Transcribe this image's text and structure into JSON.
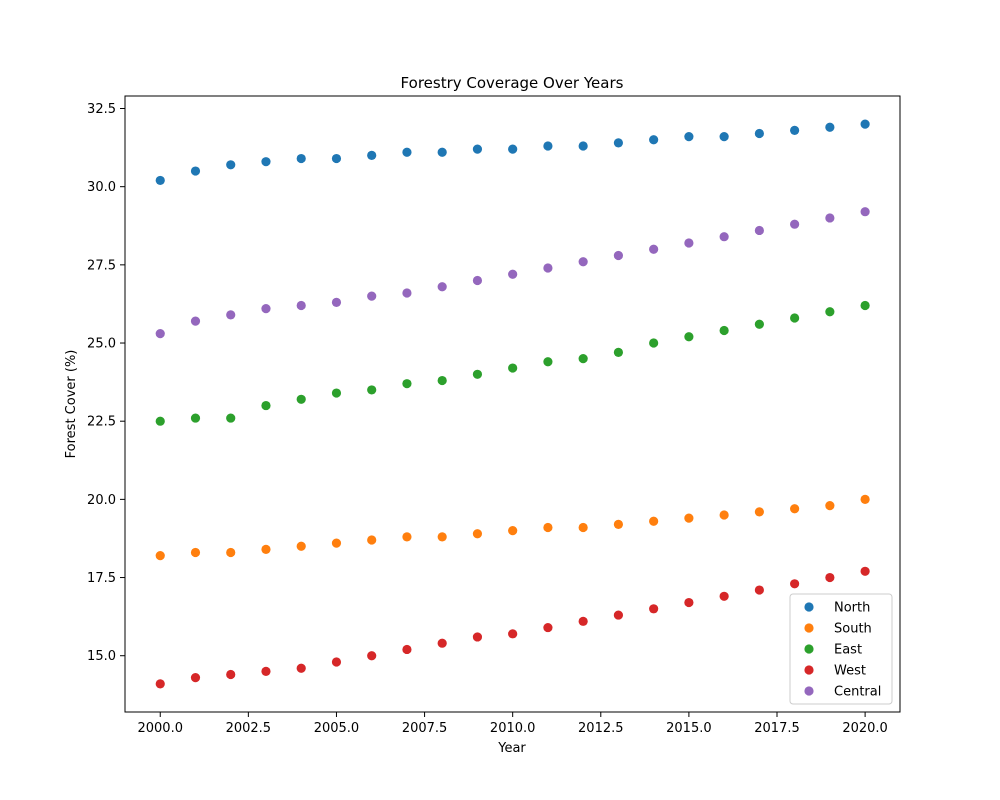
{
  "chart_data": {
    "type": "scatter",
    "title": "Forestry Coverage Over Years",
    "xlabel": "Year",
    "ylabel": "Forest Cover (%)",
    "x": [
      2000,
      2001,
      2002,
      2003,
      2004,
      2005,
      2006,
      2007,
      2008,
      2009,
      2010,
      2011,
      2012,
      2013,
      2014,
      2015,
      2016,
      2017,
      2018,
      2019,
      2020
    ],
    "xlim": [
      1999.0,
      2020.99
    ],
    "ylim": [
      13.2,
      32.9
    ],
    "xticks": [
      2000.0,
      2002.5,
      2005.0,
      2007.5,
      2010.0,
      2012.5,
      2015.0,
      2017.5,
      2020.0
    ],
    "xtick_labels": [
      "2000.0",
      "2002.5",
      "2005.0",
      "2007.5",
      "2010.0",
      "2012.5",
      "2015.0",
      "2017.5",
      "2020.0"
    ],
    "yticks": [
      15.0,
      17.5,
      20.0,
      22.5,
      25.0,
      27.5,
      30.0,
      32.5
    ],
    "ytick_labels": [
      "15.0",
      "17.5",
      "20.0",
      "22.5",
      "25.0",
      "27.5",
      "30.0",
      "32.5"
    ],
    "grid": false,
    "legend_position": "bottom-right",
    "series": [
      {
        "name": "North",
        "color": "#1f77b4",
        "values": [
          30.2,
          30.5,
          30.7,
          30.8,
          30.9,
          30.9,
          31.0,
          31.1,
          31.1,
          31.2,
          31.2,
          31.3,
          31.3,
          31.4,
          31.5,
          31.6,
          31.6,
          31.7,
          31.8,
          31.9,
          32.0
        ]
      },
      {
        "name": "South",
        "color": "#ff7f0e",
        "values": [
          18.2,
          18.3,
          18.3,
          18.4,
          18.5,
          18.6,
          18.7,
          18.8,
          18.8,
          18.9,
          19.0,
          19.1,
          19.1,
          19.2,
          19.3,
          19.4,
          19.5,
          19.6,
          19.7,
          19.8,
          20.0
        ]
      },
      {
        "name": "East",
        "color": "#2ca02c",
        "values": [
          22.5,
          22.6,
          22.6,
          23.0,
          23.2,
          23.4,
          23.5,
          23.7,
          23.8,
          24.0,
          24.2,
          24.4,
          24.5,
          24.7,
          25.0,
          25.2,
          25.4,
          25.6,
          25.8,
          26.0,
          26.2
        ]
      },
      {
        "name": "West",
        "color": "#d62728",
        "values": [
          14.1,
          14.3,
          14.4,
          14.5,
          14.6,
          14.8,
          15.0,
          15.2,
          15.4,
          15.6,
          15.7,
          15.9,
          16.1,
          16.3,
          16.5,
          16.7,
          16.9,
          17.1,
          17.3,
          17.5,
          17.7
        ]
      },
      {
        "name": "Central",
        "color": "#9467bd",
        "values": [
          25.3,
          25.7,
          25.9,
          26.1,
          26.2,
          26.3,
          26.5,
          26.6,
          26.8,
          27.0,
          27.2,
          27.4,
          27.6,
          27.8,
          28.0,
          28.2,
          28.4,
          28.6,
          28.8,
          29.0,
          29.2
        ]
      }
    ]
  }
}
